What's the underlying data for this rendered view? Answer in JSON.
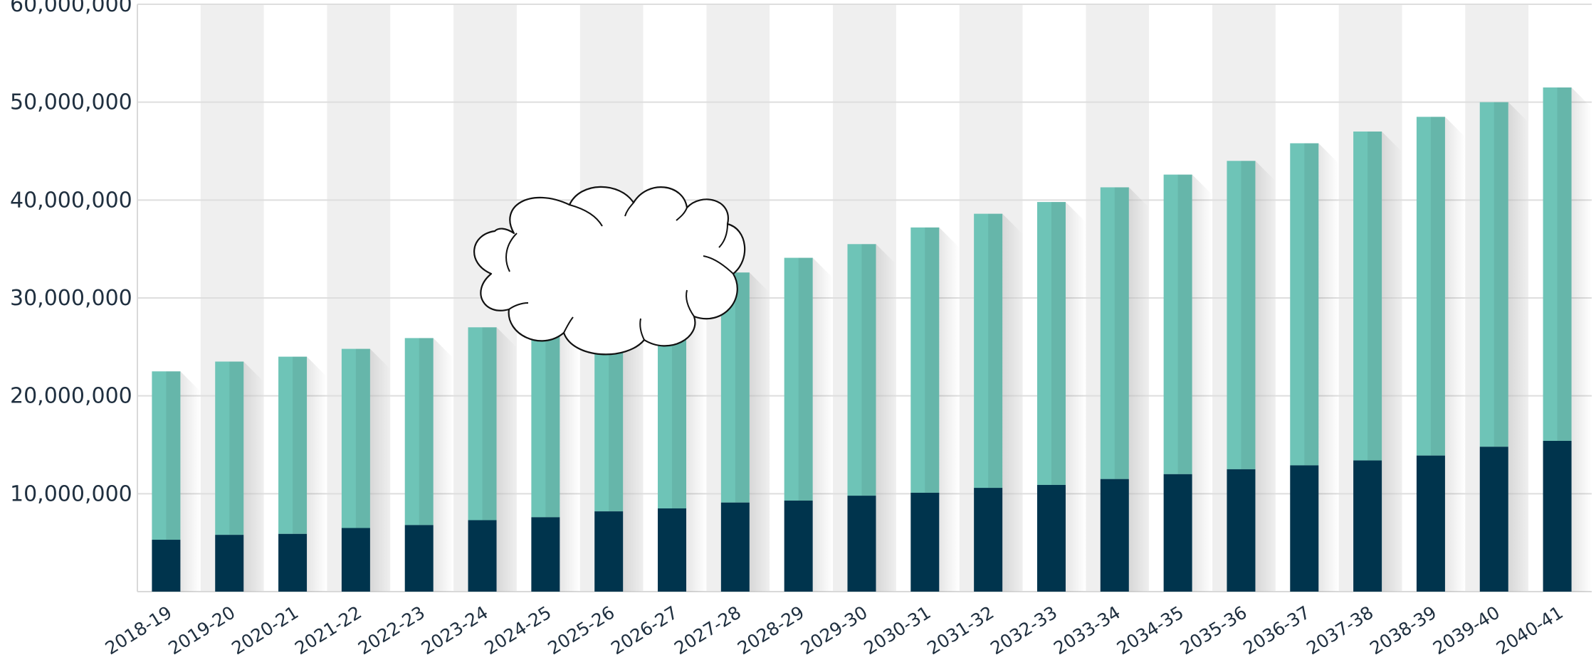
{
  "chart_data": {
    "type": "bar",
    "stacked": true,
    "categories": [
      "2018-19",
      "2019-20",
      "2020-21",
      "2021-22",
      "2022-23",
      "2023-24",
      "2024-25",
      "2025-26",
      "2026-27",
      "2027-28",
      "2028-29",
      "2029-30",
      "2030-31",
      "2031-32",
      "2032-33",
      "2033-34",
      "2034-35",
      "2035-36",
      "2036-37",
      "2037-38",
      "2038-39",
      "2039-40",
      "2040-41"
    ],
    "series": [
      {
        "color": "#00344d",
        "values": [
          5300000,
          5800000,
          5900000,
          6500000,
          6800000,
          7300000,
          7600000,
          8200000,
          8500000,
          9100000,
          9300000,
          9800000,
          10100000,
          10600000,
          10900000,
          11500000,
          12000000,
          12500000,
          12900000,
          13400000,
          13900000,
          14800000,
          15400000
        ]
      },
      {
        "color": "#6ec4b7",
        "values": [
          17200000,
          17700000,
          18100000,
          18300000,
          19100000,
          19700000,
          20700000,
          21300000,
          22300000,
          23500000,
          24800000,
          25700000,
          27100000,
          28000000,
          28900000,
          29800000,
          30600000,
          31500000,
          32900000,
          33600000,
          34600000,
          35200000,
          36100000
        ]
      }
    ],
    "totals": [
      22500000,
      23500000,
      24000000,
      24800000,
      25900000,
      27000000,
      28300000,
      29500000,
      30800000,
      32600000,
      34100000,
      35500000,
      37200000,
      38600000,
      39800000,
      41300000,
      42600000,
      44000000,
      45800000,
      47000000,
      48500000,
      50000000,
      51500000
    ],
    "ylim": [
      0,
      60000000
    ],
    "yticks": [
      "10,000,000",
      "20,000,000",
      "30,000,000",
      "40,000,000",
      "50,000,000",
      "60,000,000"
    ],
    "ytick_values": [
      10000000,
      20000000,
      30000000,
      40000000,
      50000000,
      60000000
    ],
    "grid": true,
    "legend": "none",
    "band_colors": [
      "#ffffff",
      "#efefef"
    ],
    "overlay": "cloud-shape"
  }
}
